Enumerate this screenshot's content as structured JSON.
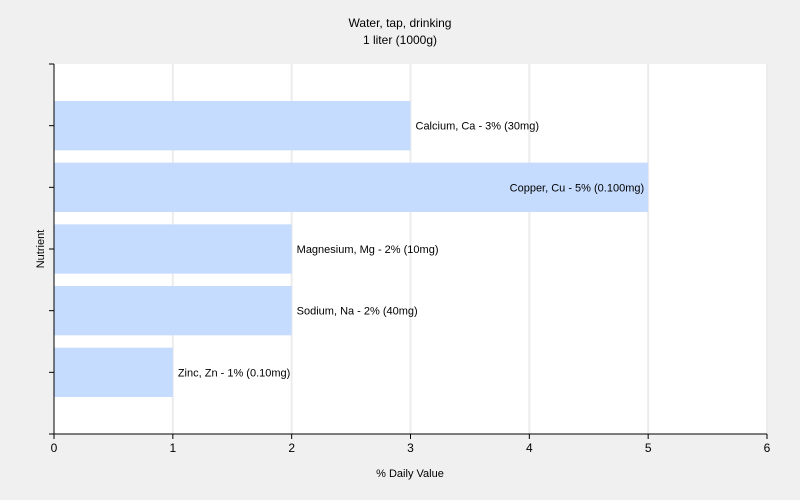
{
  "chart_data": {
    "type": "bar",
    "orientation": "horizontal",
    "title": "Water, tap, drinking",
    "subtitle": "1 liter (1000g)",
    "xlabel": "% Daily Value",
    "ylabel": "Nutrient",
    "xlim": [
      0,
      6
    ],
    "xticks": [
      "0",
      "1",
      "2",
      "3",
      "4",
      "5",
      "6"
    ],
    "grid": true,
    "bar_color": "#c6dcff",
    "categories": [
      "Calcium, Ca",
      "Copper, Cu",
      "Magnesium, Mg",
      "Sodium, Na",
      "Zinc, Zn"
    ],
    "values": [
      3,
      5,
      2,
      2,
      1
    ],
    "labels": [
      "Calcium, Ca - 3% (30mg)",
      "Copper, Cu - 5% (0.100mg)",
      "Magnesium, Mg - 2% (10mg)",
      "Sodium, Na - 2% (40mg)",
      "Zinc, Zn - 1% (0.10mg)"
    ]
  }
}
